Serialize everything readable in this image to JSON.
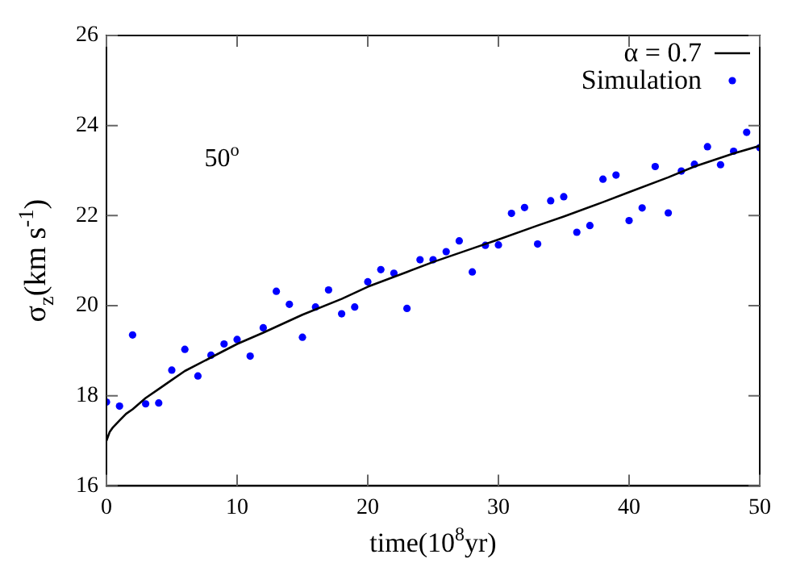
{
  "chart_data": {
    "type": "scatter",
    "xlabel": "time(10$^{8}$yr)",
    "ylabel": "σ$_{z}$(km s$^{-1}$)",
    "annotations": [
      "50$^{o}$"
    ],
    "xlim": [
      0,
      50
    ],
    "xticks": [
      0,
      10,
      20,
      30,
      40,
      50
    ],
    "ylim": [
      16,
      26
    ],
    "yticks": [
      16,
      18,
      20,
      22,
      24,
      26
    ],
    "grid": false,
    "legend": "top right",
    "series": [
      {
        "name": "α = 0.7",
        "type": "line",
        "marker": "none",
        "color": "#000000",
        "x": [
          0,
          0.25,
          0.5,
          1,
          1.5,
          2,
          3,
          4,
          5,
          6,
          7,
          8,
          10,
          12,
          15,
          18,
          20,
          23,
          25,
          28,
          30,
          33,
          35,
          38,
          40,
          43,
          45,
          48,
          50
        ],
        "values": [
          17.0,
          17.2,
          17.3,
          17.45,
          17.6,
          17.7,
          17.95,
          18.15,
          18.35,
          18.55,
          18.7,
          18.85,
          19.15,
          19.4,
          19.8,
          20.15,
          20.42,
          20.75,
          20.97,
          21.27,
          21.47,
          21.78,
          21.98,
          22.3,
          22.52,
          22.85,
          23.09,
          23.38,
          23.55
        ]
      },
      {
        "name": "Simulation",
        "type": "scatter",
        "marker": "circle",
        "color": "#0000ff",
        "x": [
          0,
          1,
          2,
          3,
          4,
          5,
          6,
          7,
          8,
          9,
          10,
          11,
          12,
          13,
          14,
          15,
          16,
          17,
          18,
          19,
          20,
          21,
          22,
          23,
          24,
          25,
          26,
          27,
          28,
          29,
          30,
          31,
          32,
          33,
          34,
          35,
          36,
          37,
          38,
          39,
          40,
          41,
          42,
          43,
          44,
          45,
          46,
          47,
          48,
          49,
          50
        ],
        "values": [
          17.86,
          17.77,
          19.35,
          17.82,
          17.84,
          18.57,
          19.03,
          18.44,
          18.9,
          19.15,
          19.25,
          18.88,
          19.51,
          20.32,
          20.03,
          19.3,
          19.97,
          20.35,
          19.82,
          19.97,
          20.53,
          20.8,
          20.72,
          19.94,
          21.02,
          21.02,
          21.2,
          21.44,
          20.75,
          21.34,
          21.35,
          22.05,
          22.18,
          21.37,
          22.33,
          22.42,
          21.63,
          21.78,
          22.81,
          22.9,
          21.89,
          22.17,
          23.09,
          22.06,
          22.99,
          23.14,
          23.53,
          23.13,
          23.43,
          23.85,
          23.51
        ]
      }
    ]
  }
}
